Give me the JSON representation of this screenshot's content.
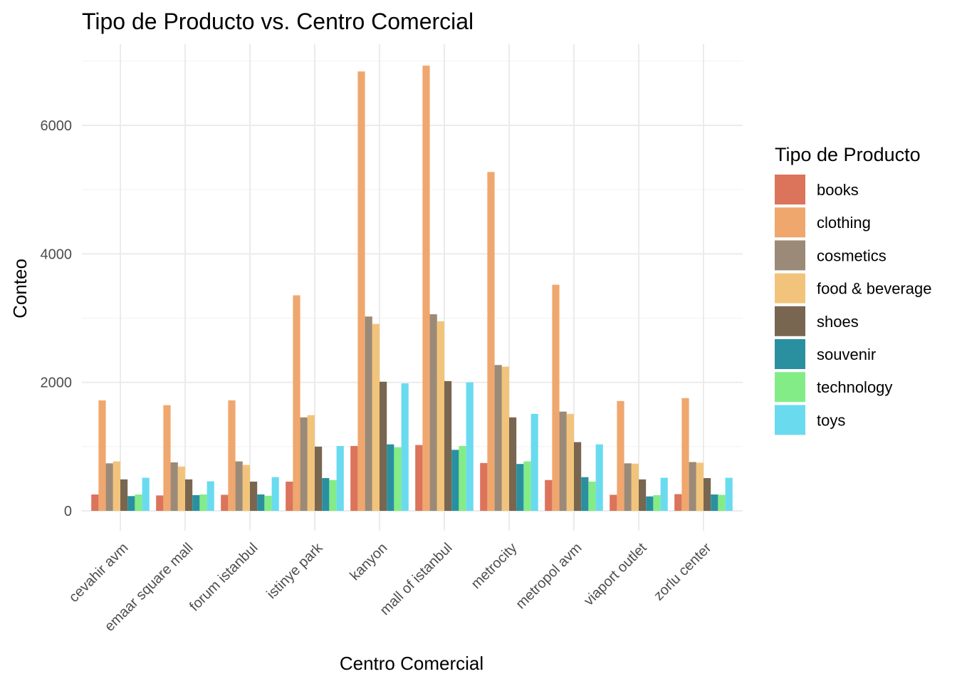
{
  "chart_data": {
    "type": "bar",
    "title": "Tipo de Producto vs. Centro Comercial",
    "xlabel": "Centro Comercial",
    "ylabel": "Conteo",
    "ylim": [
      0,
      7000
    ],
    "yticks": [
      0,
      2000,
      4000,
      6000
    ],
    "grid": true,
    "legend_title": "Tipo de Producto",
    "legend_position": "right",
    "categories": [
      "cevahir avm",
      "emaar square mall",
      "forum istanbul",
      "istinye park",
      "kanyon",
      "mall of istanbul",
      "metrocity",
      "metropol avm",
      "viaport outlet",
      "zorlu center"
    ],
    "series": [
      {
        "name": "books",
        "color": "#dc735b",
        "values": [
          255,
          240,
          250,
          455,
          1010,
          1025,
          745,
          480,
          250,
          260
        ]
      },
      {
        "name": "clothing",
        "color": "#efa76e",
        "values": [
          1720,
          1645,
          1720,
          3355,
          6840,
          6930,
          5275,
          3520,
          1710,
          1755
        ]
      },
      {
        "name": "cosmetics",
        "color": "#9b8a77",
        "values": [
          740,
          755,
          770,
          1455,
          3025,
          3060,
          2270,
          1545,
          740,
          760
        ]
      },
      {
        "name": "food & beverage",
        "color": "#f2c47b",
        "values": [
          770,
          690,
          715,
          1490,
          2910,
          2950,
          2245,
          1510,
          735,
          750
        ]
      },
      {
        "name": "shoes",
        "color": "#786651",
        "values": [
          490,
          490,
          455,
          1000,
          2010,
          2020,
          1455,
          1070,
          490,
          510
        ]
      },
      {
        "name": "souvenir",
        "color": "#2a90a0",
        "values": [
          230,
          245,
          255,
          510,
          1035,
          950,
          730,
          525,
          225,
          255
        ]
      },
      {
        "name": "technology",
        "color": "#84ec87",
        "values": [
          255,
          255,
          235,
          480,
          990,
          1010,
          770,
          455,
          245,
          250
        ]
      },
      {
        "name": "toys",
        "color": "#6adbee",
        "values": [
          515,
          460,
          525,
          1010,
          1985,
          2000,
          1510,
          1035,
          515,
          515
        ]
      }
    ]
  }
}
